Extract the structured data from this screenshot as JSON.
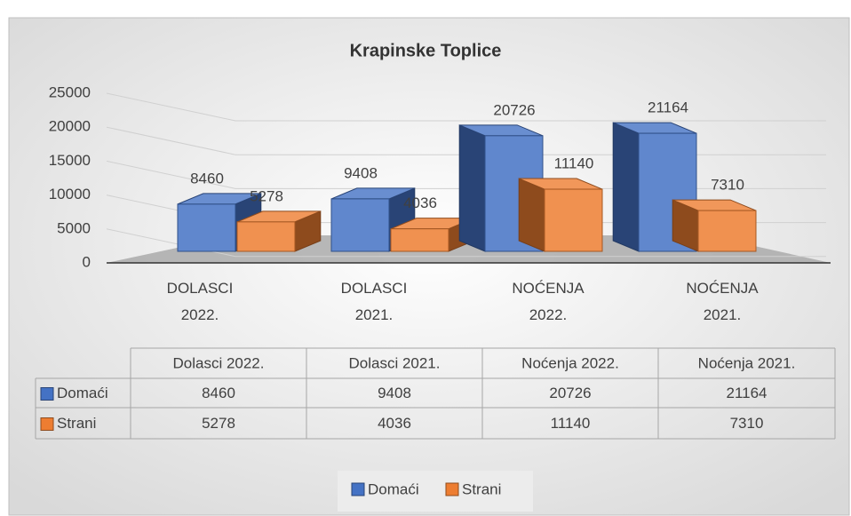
{
  "chart_data": {
    "type": "bar",
    "title": "Krapinske Toplice",
    "categories": [
      "DOLASCI 2022.",
      "DOLASCI 2021.",
      "NOĆENJA 2022.",
      "NOĆENJA 2021."
    ],
    "series": [
      {
        "name": "Domaći",
        "color": "#4472c4",
        "values": [
          8460,
          9408,
          20726,
          21164
        ]
      },
      {
        "name": "Strani",
        "color": "#ed7d31",
        "values": [
          5278,
          4036,
          11140,
          7310
        ]
      }
    ],
    "ylim": [
      0,
      25000
    ],
    "yticks": [
      0,
      5000,
      10000,
      15000,
      20000,
      25000
    ],
    "grid": true,
    "legend": "bottom",
    "data_table": {
      "columns": [
        "Dolasci 2022.",
        "Dolasci 2021.",
        "Noćenja 2022.",
        "Noćenja 2021."
      ]
    }
  }
}
